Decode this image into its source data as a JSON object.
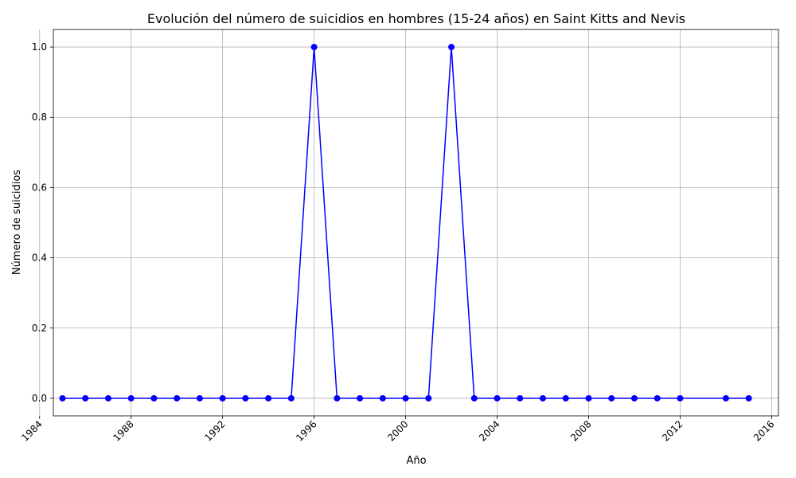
{
  "chart_data": {
    "type": "line",
    "title": "Evolución del número de suicidios en hombres (15-24 años) en Saint Kitts and Nevis",
    "xlabel": "Año",
    "ylabel": "Número de suicidios",
    "xlim": [
      1984.6,
      2016.3
    ],
    "ylim": [
      -0.05,
      1.05
    ],
    "x_ticks": [
      1984,
      1988,
      1992,
      1996,
      2000,
      2004,
      2008,
      2012,
      2016
    ],
    "y_ticks": [
      0.0,
      0.2,
      0.4,
      0.6,
      0.8,
      1.0
    ],
    "grid": true,
    "series": [
      {
        "color": "#0000ff",
        "marker": "circle",
        "points": [
          {
            "x": 1985,
            "y": 0
          },
          {
            "x": 1986,
            "y": 0
          },
          {
            "x": 1987,
            "y": 0
          },
          {
            "x": 1988,
            "y": 0
          },
          {
            "x": 1989,
            "y": 0
          },
          {
            "x": 1990,
            "y": 0
          },
          {
            "x": 1991,
            "y": 0
          },
          {
            "x": 1992,
            "y": 0
          },
          {
            "x": 1993,
            "y": 0
          },
          {
            "x": 1994,
            "y": 0
          },
          {
            "x": 1995,
            "y": 0
          },
          {
            "x": 1996,
            "y": 1
          },
          {
            "x": 1997,
            "y": 0
          },
          {
            "x": 1998,
            "y": 0
          },
          {
            "x": 1999,
            "y": 0
          },
          {
            "x": 2000,
            "y": 0
          },
          {
            "x": 2001,
            "y": 0
          },
          {
            "x": 2002,
            "y": 1
          },
          {
            "x": 2003,
            "y": 0
          },
          {
            "x": 2004,
            "y": 0
          },
          {
            "x": 2005,
            "y": 0
          },
          {
            "x": 2006,
            "y": 0
          },
          {
            "x": 2007,
            "y": 0
          },
          {
            "x": 2008,
            "y": 0
          },
          {
            "x": 2009,
            "y": 0
          },
          {
            "x": 2010,
            "y": 0
          },
          {
            "x": 2011,
            "y": 0
          },
          {
            "x": 2012,
            "y": 0
          },
          {
            "x": 2014,
            "y": 0
          },
          {
            "x": 2015,
            "y": 0
          }
        ]
      }
    ]
  }
}
